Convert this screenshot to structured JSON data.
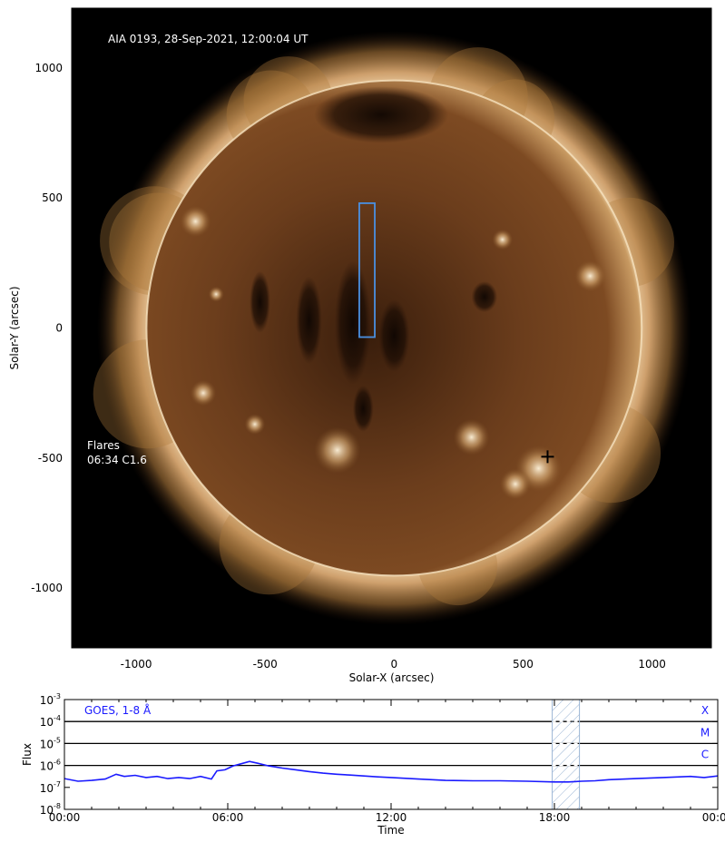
{
  "colors": {
    "solar_core": "#3a1e0c",
    "solar_mid": "#6b3d1c",
    "solar_bright": "#f2d9b0",
    "corona": "#b07a3c",
    "region_box": "#4a90e2",
    "goes_line": "#1a1aff",
    "hatch": "#9ab4d4"
  },
  "chart_data": [
    {
      "type": "image",
      "title": "AIA 0193, 28-Sep-2021, 12:00:04 UT",
      "xlabel": "Solar-X (arcsec)",
      "ylabel": "Solar-Y (arcsec)",
      "xlim": [
        -1250,
        1230
      ],
      "ylim": [
        -1230,
        1230
      ],
      "xticks": [
        -1000,
        -500,
        0,
        500,
        1000
      ],
      "xtick_labels": [
        "-1000",
        "-500",
        "0",
        "500",
        "1000"
      ],
      "yticks": [
        1000,
        500,
        0,
        -500,
        -1000
      ],
      "ytick_labels": [
        "1000",
        "500",
        "0",
        "-500",
        "-1000"
      ],
      "solar_radius_arcsec": 960,
      "region_box": {
        "x": [
          -135,
          -75
        ],
        "y": [
          -35,
          480
        ]
      },
      "flare_marker": {
        "x": 595,
        "y": -495
      },
      "annotation": {
        "heading": "Flares",
        "entry": "06:34 C1.6"
      },
      "minor_tick_step": 100
    },
    {
      "type": "line",
      "title": "GOES, 1-8 Å",
      "xlabel": "Time",
      "ylabel": "Flux",
      "xlim_hours": [
        0,
        24
      ],
      "xticks_hours": [
        0,
        6,
        12,
        18,
        24
      ],
      "xtick_labels": [
        "00:00",
        "06:00",
        "12:00",
        "18:00",
        "00:00"
      ],
      "y_scale": "log",
      "ylim_exp": [
        -8,
        -3
      ],
      "yticks_base": "10",
      "yticks_exp": [
        "-3",
        "-4",
        "-5",
        "-6",
        "-7",
        "-8"
      ],
      "class_lines_exp": [
        -4,
        -5,
        -6
      ],
      "class_labels": [
        "X",
        "M",
        "C"
      ],
      "highlight_hours": [
        17.92,
        18.92
      ],
      "series": [
        {
          "x_hours": [
            0,
            0.5,
            1,
            1.5,
            1.9,
            2.2,
            2.6,
            3.0,
            3.4,
            3.8,
            4.2,
            4.6,
            5.0,
            5.4,
            5.6,
            5.9,
            6.2,
            6.5,
            6.8,
            7.1,
            7.5,
            8,
            8.5,
            9,
            9.5,
            10,
            10.5,
            11,
            11.5,
            12,
            13,
            14,
            15,
            16,
            17,
            18,
            18.5,
            19,
            19.5,
            20,
            21,
            22,
            23,
            23.5,
            24
          ],
          "log_flux": [
            -6.6,
            -6.72,
            -6.68,
            -6.62,
            -6.4,
            -6.5,
            -6.45,
            -6.55,
            -6.5,
            -6.6,
            -6.55,
            -6.6,
            -6.5,
            -6.62,
            -6.25,
            -6.2,
            -6.02,
            -5.92,
            -5.82,
            -5.9,
            -6.02,
            -6.12,
            -6.2,
            -6.28,
            -6.35,
            -6.4,
            -6.44,
            -6.48,
            -6.52,
            -6.55,
            -6.62,
            -6.68,
            -6.7,
            -6.7,
            -6.72,
            -6.75,
            -6.75,
            -6.72,
            -6.7,
            -6.65,
            -6.6,
            -6.55,
            -6.5,
            -6.55,
            -6.48
          ]
        }
      ]
    }
  ]
}
